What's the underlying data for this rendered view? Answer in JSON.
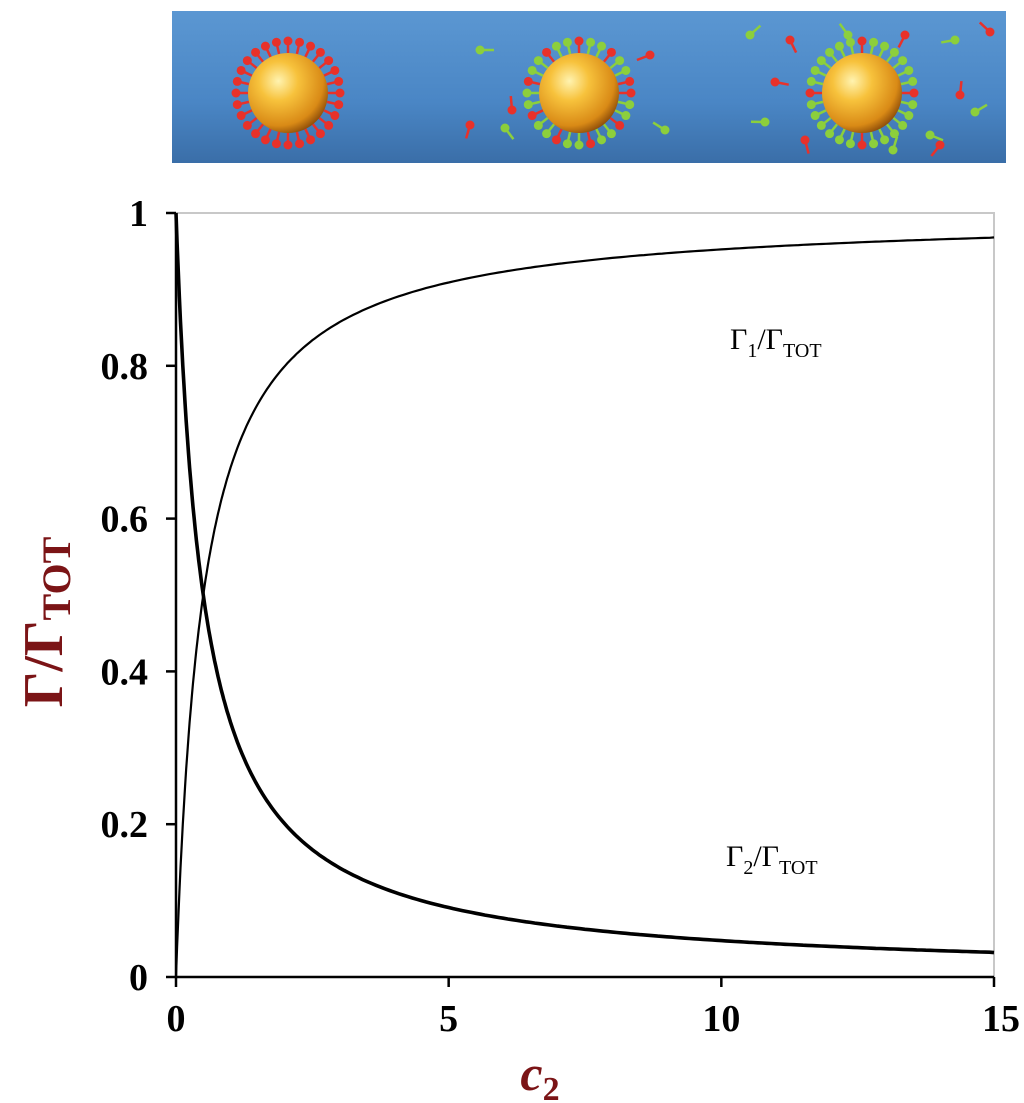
{
  "chart_data": {
    "type": "line",
    "title": "",
    "xlabel": "c",
    "xlabel_subscript": "2",
    "ylabel": "Γ/Γ",
    "ylabel_subscript": "TOT",
    "xlim": [
      0,
      15
    ],
    "ylim": [
      0,
      1
    ],
    "x_ticks": [
      "0",
      "5",
      "10",
      "15"
    ],
    "y_ticks": [
      "0",
      "0.2",
      "0.4",
      "0.6",
      "0.8",
      "1"
    ],
    "grid": false,
    "legend": "none",
    "x": [
      0,
      0.25,
      0.5,
      0.75,
      1,
      1.5,
      2,
      2.5,
      3,
      4,
      5,
      6,
      7,
      8,
      9,
      10,
      11,
      12,
      13,
      14,
      15
    ],
    "series": [
      {
        "label_main": "Γ",
        "label_sub": "1",
        "label_slash": "/Γ",
        "label_sub2": "TOT",
        "values": [
          0,
          0.33,
          0.5,
          0.6,
          0.67,
          0.75,
          0.8,
          0.833,
          0.857,
          0.889,
          0.909,
          0.923,
          0.933,
          0.941,
          0.947,
          0.952,
          0.957,
          0.96,
          0.963,
          0.966,
          0.968
        ],
        "color": "#000000"
      },
      {
        "label_main": "Γ",
        "label_sub": "2",
        "label_slash": "/Γ",
        "label_sub2": "TOT",
        "values": [
          1,
          0.67,
          0.5,
          0.4,
          0.33,
          0.25,
          0.2,
          0.167,
          0.143,
          0.111,
          0.091,
          0.077,
          0.067,
          0.059,
          0.053,
          0.048,
          0.043,
          0.04,
          0.037,
          0.034,
          0.032
        ],
        "color": "#000000"
      }
    ]
  },
  "illustration": {
    "background_color": "#4a86c5",
    "particle_color": "#f0a52a",
    "surfactant_1_color": "#e8312a",
    "surfactant_2_color": "#8ccf3c"
  }
}
